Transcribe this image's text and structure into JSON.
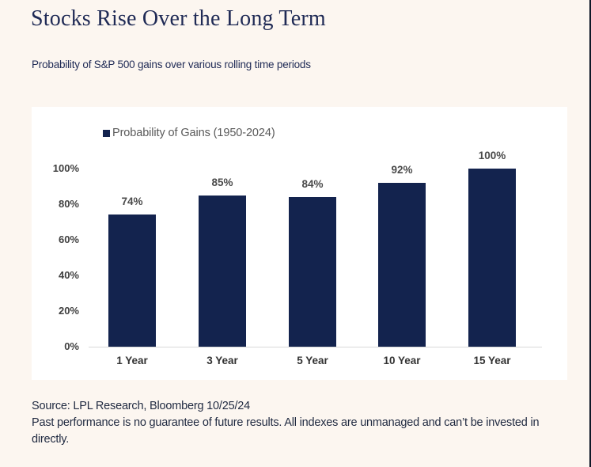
{
  "page": {
    "title": "Stocks Rise Over the Long Term",
    "subtitle": "Probability of S&P 500 gains over various rolling time periods",
    "footer": {
      "source_line": "Source: LPL Research, Bloomberg 10/25/24",
      "disclaimer": "Past performance is no guarantee of future results. All indexes are unmanaged and can’t be invested in directly."
    }
  },
  "colors": {
    "page_background": "#FCF6F0",
    "panel_background": "#FFFFFF",
    "bar": "#13234E",
    "title_text": "#1F2A55",
    "legend_text": "#595959",
    "axis_text": "#404040",
    "baseline": "#D9D9D9",
    "right_edge_line": "#101828"
  },
  "chart_data": {
    "type": "bar",
    "legend": "Probability of Gains (1950-2024)",
    "legend_position": "top-left",
    "categories": [
      "1 Year",
      "3 Year",
      "5 Year",
      "10 Year",
      "15 Year"
    ],
    "values": [
      74,
      85,
      84,
      92,
      100
    ],
    "value_labels": [
      "74%",
      "85%",
      "84%",
      "92%",
      "100%"
    ],
    "ylim": [
      0,
      100
    ],
    "yticks": [
      0,
      20,
      40,
      60,
      80,
      100
    ],
    "ytick_labels": [
      "0%",
      "20%",
      "40%",
      "60%",
      "80%",
      "100%"
    ],
    "grid": false,
    "bar_color": "#13234E",
    "xlabel": "",
    "ylabel": ""
  }
}
